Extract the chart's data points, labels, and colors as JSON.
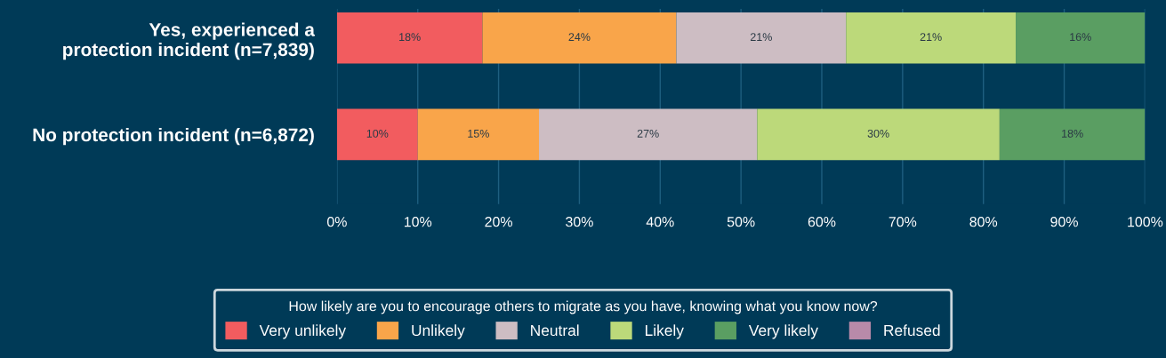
{
  "chart_data": {
    "type": "bar",
    "orientation": "horizontal",
    "stacked": true,
    "categories": [
      "Yes, experienced a\nprotection incident (n=7,839)",
      "No protection incident (n=6,872)"
    ],
    "series": [
      {
        "name": "Very unlikely",
        "color": "#f25c5f",
        "values": [
          18,
          10
        ],
        "value_labels": [
          "18%",
          "10%"
        ]
      },
      {
        "name": "Unlikely",
        "color": "#f9a54a",
        "values": [
          24,
          15
        ],
        "value_labels": [
          "24%",
          "15%"
        ]
      },
      {
        "name": "Neutral",
        "color": "#cdbdc3",
        "values": [
          21,
          27
        ],
        "value_labels": [
          "21%",
          "27%"
        ]
      },
      {
        "name": "Likely",
        "color": "#bcd97a",
        "values": [
          21,
          30
        ],
        "value_labels": [
          "21%",
          "30%"
        ]
      },
      {
        "name": "Very likely",
        "color": "#5a9e62",
        "values": [
          16,
          18
        ],
        "value_labels": [
          "16%",
          "18%"
        ]
      },
      {
        "name": "Refused",
        "color": "#b88aa9",
        "values": [
          null,
          null
        ],
        "value_labels": [
          null,
          null
        ]
      }
    ],
    "xlim": [
      0,
      100
    ],
    "xticks": [
      {
        "value": 0,
        "label": "0%"
      },
      {
        "value": 10,
        "label": "10%"
      },
      {
        "value": 20,
        "label": "20%"
      },
      {
        "value": 30,
        "label": "30%"
      },
      {
        "value": 40,
        "label": "40%"
      },
      {
        "value": 50,
        "label": "50%"
      },
      {
        "value": 60,
        "label": "60%"
      },
      {
        "value": 70,
        "label": "70%"
      },
      {
        "value": 80,
        "label": "80%"
      },
      {
        "value": 90,
        "label": "90%"
      },
      {
        "value": 100,
        "label": "100%"
      }
    ],
    "grid": "x",
    "legend": "bottom",
    "legend_title": "How likely are you to encourage others to migrate as you have, knowing what you know now?"
  }
}
